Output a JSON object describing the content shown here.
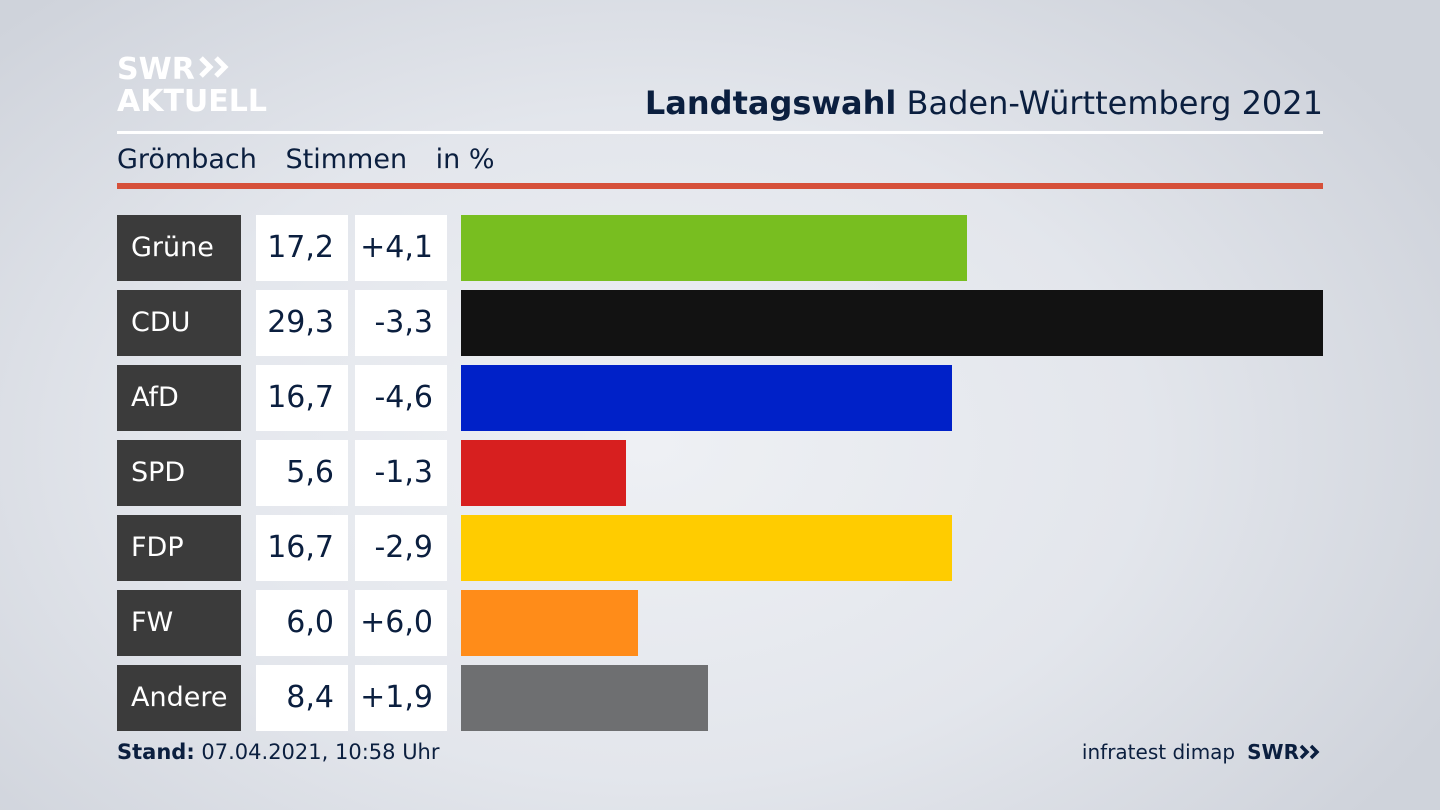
{
  "logo": {
    "line1": "SWR",
    "line2": "AKTUELL"
  },
  "header": {
    "title_bold": "Landtagswahl",
    "title_rest": "Baden-Württemberg 2021"
  },
  "subtitle": {
    "place": "Grömbach",
    "metric": "Stimmen",
    "unit": "in %"
  },
  "chart_data": {
    "type": "bar",
    "orientation": "horizontal",
    "categories": [
      "Grüne",
      "CDU",
      "AfD",
      "SPD",
      "FDP",
      "FW",
      "Andere"
    ],
    "values": [
      17.2,
      29.3,
      16.7,
      5.6,
      16.7,
      6.0,
      8.4
    ],
    "value_labels": [
      "17,2",
      "29,3",
      "16,7",
      "5,6",
      "16,7",
      "6,0",
      "8,4"
    ],
    "diff_labels": [
      "+4,1",
      "-3,3",
      "-4,6",
      "-1,3",
      "-2,9",
      "+6,0",
      "+1,9"
    ],
    "colors": [
      "#78be20",
      "#121212",
      "#0021c8",
      "#d71f1f",
      "#ffcc00",
      "#ff8c19",
      "#6e6f71"
    ],
    "xlim": [
      0,
      29.3
    ],
    "grid": false,
    "legend": "none"
  },
  "footer": {
    "stand_label": "Stand:",
    "stand_value": "07.04.2021, 10:58 Uhr",
    "source": "infratest dimap",
    "brand": "SWR"
  }
}
